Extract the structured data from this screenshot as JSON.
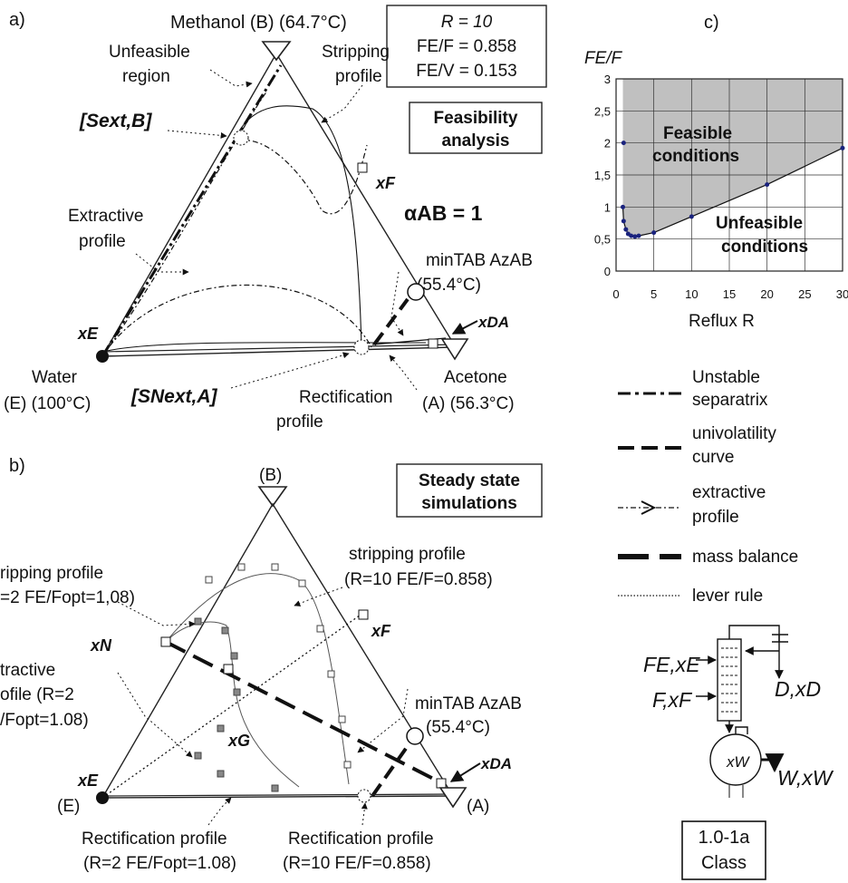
{
  "panel_a": {
    "label": "a)",
    "methanol_label": "Methanol (B) (64.7°C)",
    "params": {
      "r": "R = 10",
      "fe_f": "FE/F = 0.858",
      "fe_v": "FE/V = 0.153"
    },
    "feasibility": [
      "Feasibility",
      "analysis"
    ],
    "unfeasible_region": [
      "Unfeasible",
      "region"
    ],
    "stripping_profile": [
      "Stripping",
      "profile"
    ],
    "sext": "[Sext,B]",
    "extractive_profile": [
      "Extractive",
      "profile"
    ],
    "alpha": "αAB = 1",
    "xf": "xF",
    "az": [
      "minTAB AzAB",
      "(55.4°C)"
    ],
    "xda": "xDA",
    "xe": "xE",
    "water": [
      "Water",
      "(E) (100°C)"
    ],
    "snext": "[SNext,A]",
    "rectification": [
      "Rectification",
      "profile"
    ],
    "acetone": [
      "Acetone",
      "(A) (56.3°C)"
    ]
  },
  "panel_b": {
    "label": "b)",
    "b_vertex": "(B)",
    "steady": [
      "Steady state",
      "simulations"
    ],
    "stripping_left": [
      "ripping profile",
      "=2 FE/Fopt=1,08)"
    ],
    "stripping_right": [
      "stripping profile",
      "(R=10 FE/F=0.858)"
    ],
    "xf": "xF",
    "xn": "xN",
    "extractive": [
      "tractive",
      "ofile (R=2",
      "/Fopt=1.08)"
    ],
    "az": [
      "minTAB AzAB",
      "(55.4°C)"
    ],
    "xg": "xG",
    "xe": "xE",
    "xda": "xDA",
    "e_vertex": "(E)",
    "a_vertex": "(A)",
    "rect_left": [
      "Rectification profile",
      "(R=2 FE/Fopt=1.08)"
    ],
    "rect_right": [
      "Rectification profile",
      "(R=10 FE/F=0.858)"
    ]
  },
  "panel_c": {
    "label": "c)",
    "ylabel": "FE/F",
    "xlabel": "Reflux R",
    "feasible": [
      "Feasible",
      "conditions"
    ],
    "unfeasible": [
      "Unfeasible",
      "conditions"
    ]
  },
  "chart_data": {
    "type": "area",
    "xlabel": "Reflux R",
    "ylabel": "FE/F",
    "xlim": [
      0,
      30
    ],
    "ylim": [
      0,
      3
    ],
    "x_ticks": [
      "0",
      "5",
      "10",
      "15",
      "20",
      "25",
      "30"
    ],
    "y_ticks": [
      "0",
      "0,5",
      "1",
      "1,5",
      "2",
      "2,5",
      "3"
    ],
    "grid": true,
    "x": [
      0.9,
      1.0,
      1.3,
      1.6,
      2.0,
      2.5,
      3.0,
      5.0,
      10.0,
      20.0,
      30.0
    ],
    "y": [
      1.0,
      0.78,
      0.65,
      0.58,
      0.55,
      0.54,
      0.55,
      0.6,
      0.85,
      1.35,
      1.92
    ],
    "extra_points": [
      {
        "x": 1.0,
        "y": 2.0
      }
    ],
    "color_feasible": "#c0c0c0",
    "color_marker": "#1a237e"
  },
  "legend": {
    "items": [
      {
        "label": [
          "Unstable",
          "separatrix"
        ]
      },
      {
        "label": [
          "univolatility",
          "curve"
        ]
      },
      {
        "label": [
          "extractive",
          "profile"
        ]
      },
      {
        "label": [
          "mass balance"
        ]
      },
      {
        "label": [
          "lever rule"
        ]
      }
    ]
  },
  "column": {
    "fe": "FE,xE",
    "f": "F,xF",
    "d": "D,xD",
    "w": "W,xW",
    "xw": "xW"
  },
  "class_box": [
    "1.0-1a",
    "Class"
  ]
}
